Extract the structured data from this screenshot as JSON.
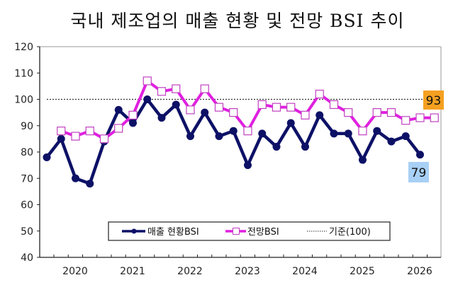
{
  "chart_data": {
    "type": "line",
    "title": "국내 제조업의 매출 현황 및 전망 BSI 추이",
    "xlabel": "",
    "ylabel": "",
    "ylim": [
      40,
      120
    ],
    "yticks": [
      40,
      50,
      60,
      70,
      80,
      90,
      100,
      110,
      120
    ],
    "year_labels": [
      "2020",
      "2021",
      "2022",
      "2023",
      "2024",
      "2025",
      "2026"
    ],
    "reference_line": {
      "name": "기준(100)",
      "value": 100
    },
    "series": [
      {
        "name": "매출 현황BSI",
        "color": "#0d1166",
        "marker": "circle",
        "start_index": 0,
        "values": [
          78,
          85,
          70,
          68,
          84,
          96,
          91,
          100,
          93,
          98,
          86,
          95,
          86,
          88,
          75,
          87,
          82,
          91,
          82,
          94,
          87,
          87,
          77,
          88,
          84,
          86,
          79
        ]
      },
      {
        "name": "전망BSI",
        "color": "#e020e0",
        "marker": "square",
        "start_index": 1,
        "values": [
          88,
          86,
          88,
          85,
          89,
          94,
          107,
          103,
          104,
          96,
          104,
          97,
          95,
          88,
          98,
          97,
          97,
          94,
          102,
          98,
          95,
          88,
          95,
          95,
          92,
          93,
          93
        ]
      }
    ],
    "annotations": [
      {
        "text": "93",
        "series": "전망BSI",
        "bg": "#f5a020"
      },
      {
        "text": "79",
        "series": "매출 현황BSI",
        "bg": "#a8d0f5"
      }
    ],
    "legend": {
      "placement": "bottom-center",
      "entries": [
        "매출 현황BSI",
        "전망BSI",
        "기준(100)"
      ]
    }
  }
}
